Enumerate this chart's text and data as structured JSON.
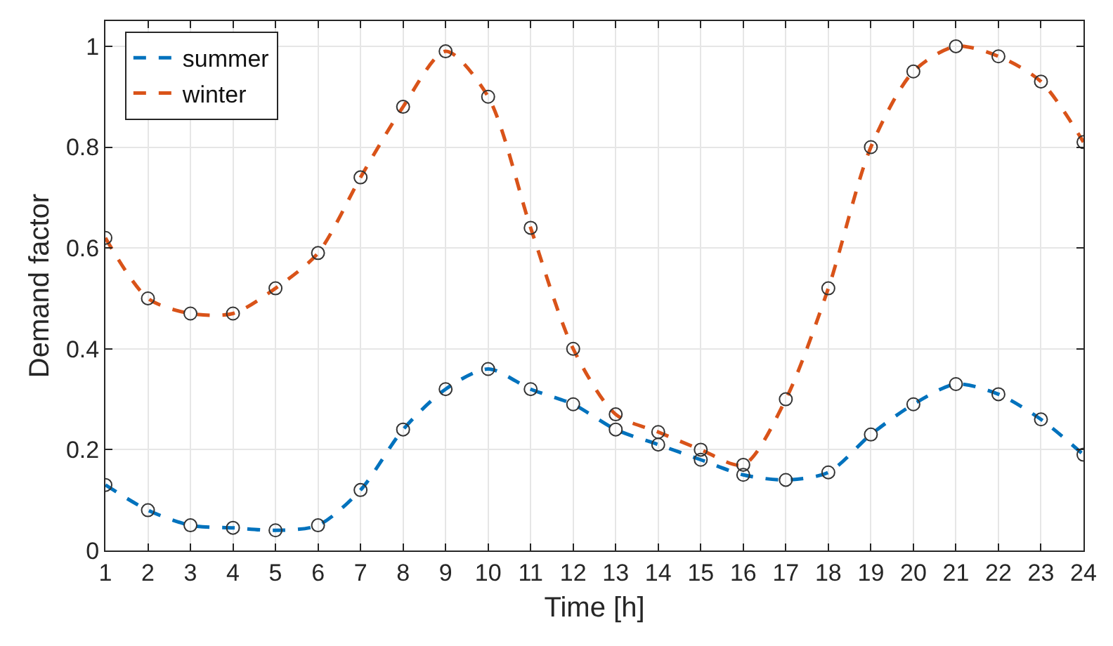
{
  "chart_data": {
    "type": "line",
    "xlabel": "Time [h]",
    "ylabel": "Demand factor",
    "x": [
      1,
      2,
      3,
      4,
      5,
      6,
      7,
      8,
      9,
      10,
      11,
      12,
      13,
      14,
      15,
      16,
      17,
      18,
      19,
      20,
      21,
      22,
      23,
      24
    ],
    "series": [
      {
        "name": "summer",
        "color": "#0072bd",
        "values": [
          0.13,
          0.08,
          0.05,
          0.045,
          0.04,
          0.05,
          0.12,
          0.24,
          0.32,
          0.36,
          0.32,
          0.29,
          0.24,
          0.21,
          0.18,
          0.15,
          0.14,
          0.155,
          0.23,
          0.29,
          0.33,
          0.31,
          0.26,
          0.19
        ]
      },
      {
        "name": "winter",
        "color": "#d95319",
        "values": [
          0.62,
          0.5,
          0.47,
          0.47,
          0.52,
          0.59,
          0.74,
          0.88,
          0.99,
          0.9,
          0.64,
          0.4,
          0.27,
          0.235,
          0.2,
          0.17,
          0.3,
          0.52,
          0.8,
          0.95,
          1.0,
          0.98,
          0.93,
          0.81
        ]
      }
    ],
    "xlim": [
      1,
      24
    ],
    "xticks": [
      1,
      2,
      3,
      4,
      5,
      6,
      7,
      8,
      9,
      10,
      11,
      12,
      13,
      14,
      15,
      16,
      17,
      18,
      19,
      20,
      21,
      22,
      23,
      24
    ],
    "ylim": [
      0,
      1.05
    ],
    "yticks": [
      0,
      0.2,
      0.4,
      0.6,
      0.8,
      1
    ],
    "grid": true,
    "legend": "top left",
    "marker": "circle",
    "line_style": "dashed"
  }
}
